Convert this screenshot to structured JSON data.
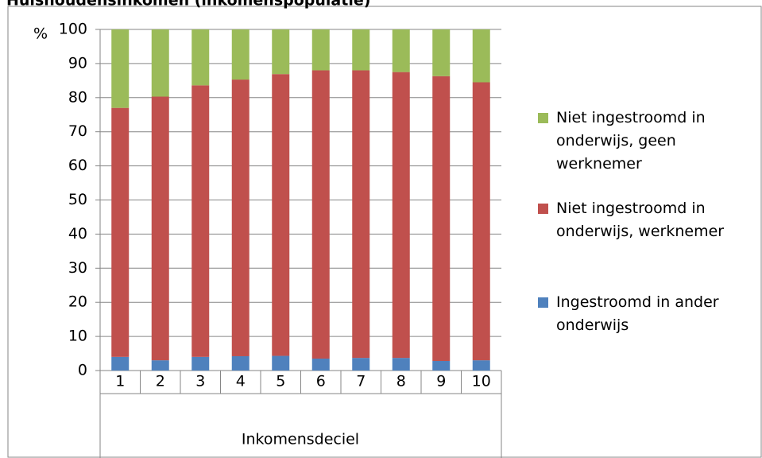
{
  "chart_data": {
    "type": "bar",
    "stacked": true,
    "title": "Huishoudensinkomen (inkomenspopulatie)",
    "y_label": "%",
    "x_label": "Inkomensdeciel",
    "categories": [
      "1",
      "2",
      "3",
      "4",
      "5",
      "6",
      "7",
      "8",
      "9",
      "10"
    ],
    "series": [
      {
        "name": "Ingestroomd in ander onderwijs",
        "color": "#4f81bd",
        "values": [
          4,
          3,
          4,
          4.2,
          4.3,
          3.5,
          3.7,
          3.7,
          2.8,
          3
        ]
      },
      {
        "name": "Niet ingestroomd in onderwijs, werknemer",
        "color": "#c0504d",
        "values": [
          73,
          77.3,
          79.6,
          81.1,
          82.6,
          84.5,
          84.3,
          83.8,
          83.5,
          81.5
        ]
      },
      {
        "name": "Niet ingestroomd in onderwijs, geen werknemer",
        "color": "#9bbb59",
        "values": [
          23,
          19.7,
          16.4,
          14.7,
          13.1,
          12,
          12,
          12.5,
          13.7,
          15.5
        ]
      }
    ],
    "ylim": [
      0,
      100
    ],
    "yticks": [
      0,
      10,
      20,
      30,
      40,
      50,
      60,
      70,
      80,
      90,
      100
    ],
    "legend": "right"
  }
}
